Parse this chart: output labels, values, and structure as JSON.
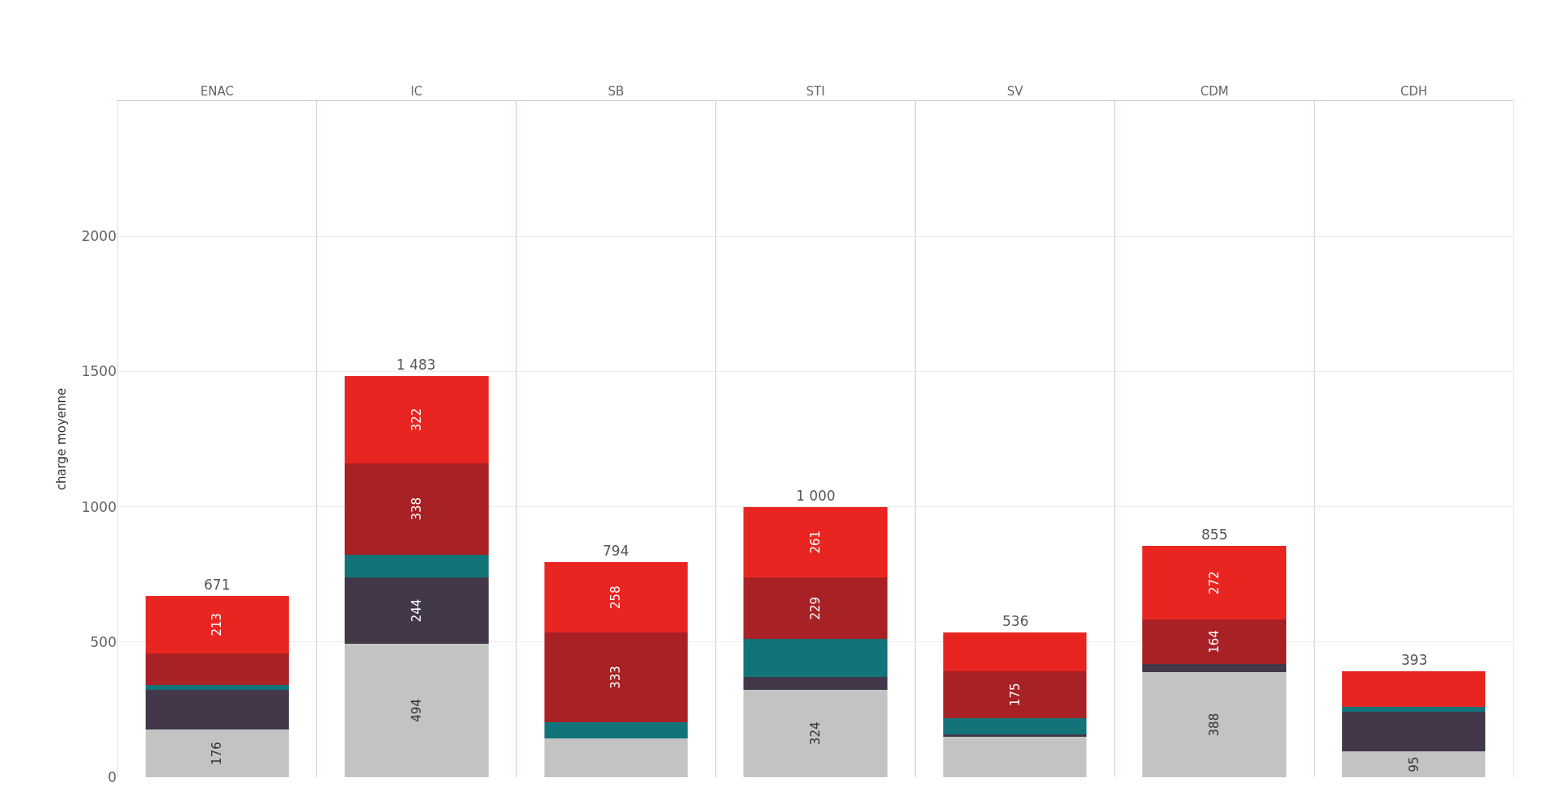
{
  "chart_data": {
    "type": "bar",
    "stacked": true,
    "ylabel": "charge moyenne",
    "categories": [
      "ENAC",
      "IC",
      "SB",
      "STI",
      "SV",
      "CDM",
      "CDH"
    ],
    "series": [
      {
        "color": "#c4c3c4",
        "values": [
          176,
          494,
          145,
          324,
          149,
          388,
          95
        ],
        "value_labels": [
          "176",
          "494",
          null,
          "324",
          null,
          "388",
          "95"
        ]
      },
      {
        "color": "#42384a",
        "values": [
          147,
          244,
          null,
          46,
          11,
          31,
          148
        ],
        "value_labels": [
          null,
          "244",
          null,
          null,
          null,
          null,
          null
        ]
      },
      {
        "color": "#127479",
        "values": [
          17,
          85,
          58,
          140,
          58,
          null,
          16
        ],
        "value_labels": [
          null,
          null,
          null,
          null,
          null,
          null,
          null
        ]
      },
      {
        "color": "#a82124",
        "values": [
          118,
          338,
          333,
          229,
          175,
          164,
          null
        ],
        "value_labels": [
          null,
          "338",
          "333",
          "229",
          "175",
          "164",
          null
        ]
      },
      {
        "color": "#e92522",
        "values": [
          213,
          322,
          258,
          261,
          143,
          272,
          134
        ],
        "value_labels": [
          "213",
          "322",
          "258",
          "261",
          null,
          "272",
          null
        ]
      }
    ],
    "totals": [
      "671",
      "1 483",
      "794",
      "1 000",
      "536",
      "855",
      "393"
    ],
    "ylim": [
      0,
      2500
    ],
    "yticks": [
      0,
      500,
      1000,
      1500,
      2000
    ],
    "grid": true
  }
}
